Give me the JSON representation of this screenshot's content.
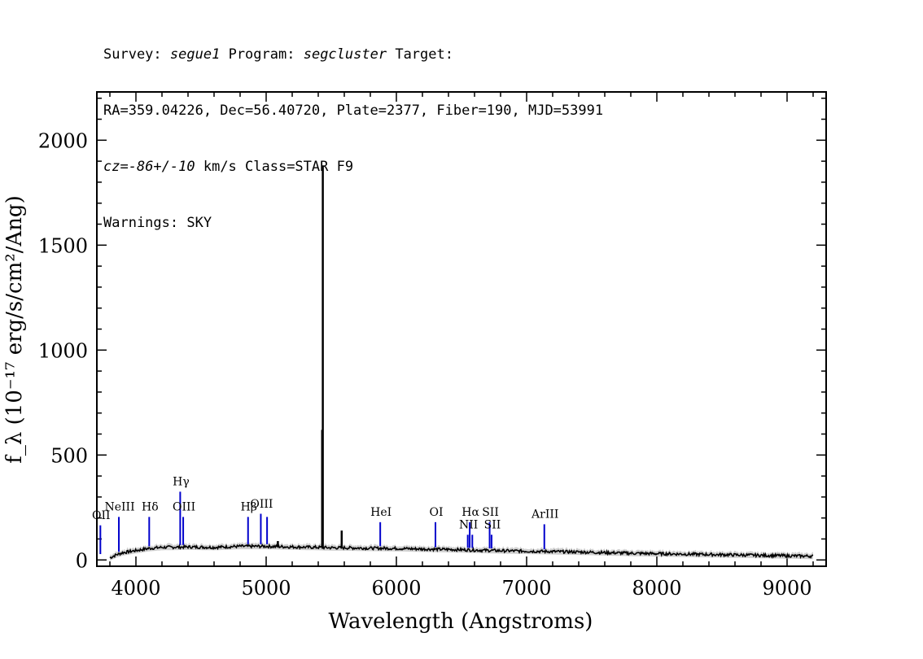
{
  "header": {
    "survey_label": "Survey:",
    "survey": "segue1",
    "program_label": "Program:",
    "program": "segcluster",
    "target_label": "Target:",
    "line2": "RA=359.04226, Dec=56.40720, Plate=2377, Fiber=190, MJD=53991",
    "cz_label": "cz=",
    "cz_value": "-86+/-10",
    "cz_rest": " km/s Class=STAR F9",
    "warnings": "Warnings: SKY"
  },
  "chart_data": {
    "type": "line",
    "xlabel": "Wavelength (Angstroms)",
    "ylabel": "f_λ (10⁻¹⁷ erg/s/cm²/Ang)",
    "xlim": [
      3700,
      9300
    ],
    "ylim": [
      -30,
      2230
    ],
    "x_ticks": [
      4000,
      5000,
      6000,
      7000,
      8000,
      9000
    ],
    "y_ticks": [
      0,
      500,
      1000,
      1500,
      2000
    ],
    "colors": {
      "spectrum": "#000000",
      "error": "#b0b0b0",
      "lines": "#0000cc"
    },
    "spectrum_points": [
      [
        3800,
        10
      ],
      [
        3850,
        25
      ],
      [
        3900,
        35
      ],
      [
        4000,
        45
      ],
      [
        4100,
        55
      ],
      [
        4200,
        60
      ],
      [
        4400,
        62
      ],
      [
        4600,
        60
      ],
      [
        4800,
        65
      ],
      [
        5000,
        65
      ],
      [
        5200,
        62
      ],
      [
        5400,
        60
      ],
      [
        5500,
        58
      ],
      [
        5600,
        58
      ],
      [
        5800,
        56
      ],
      [
        6000,
        55
      ],
      [
        6200,
        52
      ],
      [
        6400,
        50
      ],
      [
        6600,
        47
      ],
      [
        6800,
        44
      ],
      [
        7000,
        42
      ],
      [
        7200,
        40
      ],
      [
        7400,
        38
      ],
      [
        7600,
        35
      ],
      [
        7800,
        32
      ],
      [
        8000,
        30
      ],
      [
        8200,
        28
      ],
      [
        8400,
        26
      ],
      [
        8600,
        24
      ],
      [
        8800,
        22
      ],
      [
        9000,
        20
      ],
      [
        9200,
        18
      ]
    ],
    "peaks": [
      {
        "x": 5435,
        "y": 1880
      },
      {
        "x": 5430,
        "y": 620
      },
      {
        "x": 5580,
        "y": 140
      },
      {
        "x": 5090,
        "y": 90
      }
    ],
    "emission_lines": [
      {
        "label": "OII",
        "x": 3727,
        "top": 165,
        "label_y": 195
      },
      {
        "label": "NeIII",
        "x": 3869,
        "top": 205,
        "label_y": 235
      },
      {
        "label": "Hδ",
        "x": 4102,
        "top": 205,
        "label_y": 235
      },
      {
        "label": "Hγ",
        "x": 4340,
        "top": 325,
        "label_y": 355
      },
      {
        "label": "OIII",
        "x": 4363,
        "top": 205,
        "label_y": 235
      },
      {
        "label": "Hβ",
        "x": 4861,
        "top": 205,
        "label_y": 235
      },
      {
        "label": "OIII",
        "x": 4959,
        "top": 220,
        "label_y": 250
      },
      {
        "label": "OIII",
        "x": 5007,
        "top": 205,
        "label_y": 0
      },
      {
        "label": "HeI",
        "x": 5876,
        "top": 180,
        "label_y": 210
      },
      {
        "label": "OI",
        "x": 6300,
        "top": 180,
        "label_y": 210
      },
      {
        "label": "NII",
        "x": 6548,
        "top": 120,
        "label_y": 150
      },
      {
        "label": "Hα",
        "x": 6563,
        "top": 180,
        "label_y": 210
      },
      {
        "label": "NII",
        "x": 6583,
        "top": 120,
        "label_y": 0
      },
      {
        "label": "SII",
        "x": 6716,
        "top": 180,
        "label_y": 210
      },
      {
        "label": "SII",
        "x": 6731,
        "top": 120,
        "label_y": 150
      },
      {
        "label": "ArIII",
        "x": 7136,
        "top": 170,
        "label_y": 200
      }
    ]
  }
}
